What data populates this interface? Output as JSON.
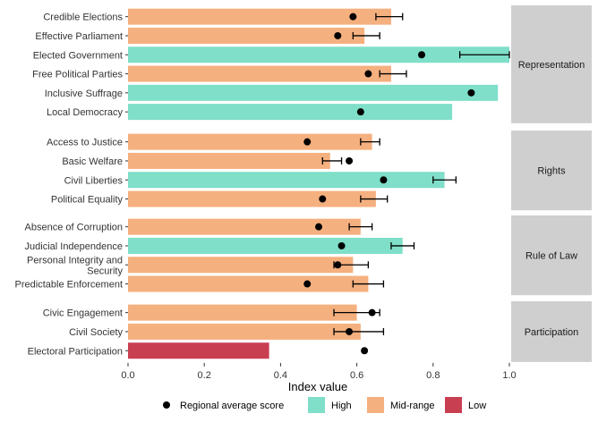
{
  "colors": {
    "High": "#7fdfc9",
    "Mid-range": "#f5b07f",
    "Low": "#c93f52",
    "point": "#000000",
    "strip": "#cfcfcf"
  },
  "chart_data": {
    "type": "bar",
    "orientation": "horizontal",
    "xlabel": "Index value",
    "xlim": [
      0,
      1
    ],
    "xticks": [
      0,
      0.2,
      0.4,
      0.6,
      0.8,
      1
    ],
    "xtick_labels": [
      "0.0",
      "0.2",
      "0.4",
      "0.6",
      "0.8",
      "1.0"
    ],
    "grid": false,
    "legend": {
      "position": "bottom",
      "point_label": "Regional average score",
      "bar_labels": [
        "High",
        "Mid-range",
        "Low"
      ]
    },
    "facets": [
      {
        "name": "Representation",
        "items": [
          {
            "label": "Credible Elections",
            "value": 0.69,
            "category": "Mid-range",
            "regional_avg": 0.59,
            "ci": [
              0.65,
              0.72
            ]
          },
          {
            "label": "Effective Parliament",
            "value": 0.62,
            "category": "Mid-range",
            "regional_avg": 0.55,
            "ci": [
              0.59,
              0.66
            ]
          },
          {
            "label": "Elected Government",
            "value": 1.0,
            "category": "High",
            "regional_avg": 0.77,
            "ci": [
              0.87,
              1.0
            ]
          },
          {
            "label": "Free Political Parties",
            "value": 0.69,
            "category": "Mid-range",
            "regional_avg": 0.63,
            "ci": [
              0.66,
              0.73
            ]
          },
          {
            "label": "Inclusive Suffrage",
            "value": 0.97,
            "category": "High",
            "regional_avg": 0.9,
            "ci": null
          },
          {
            "label": "Local Democracy",
            "value": 0.85,
            "category": "High",
            "regional_avg": 0.61,
            "ci": null
          }
        ]
      },
      {
        "name": "Rights",
        "items": [
          {
            "label": "Access to Justice",
            "value": 0.64,
            "category": "Mid-range",
            "regional_avg": 0.47,
            "ci": [
              0.61,
              0.66
            ]
          },
          {
            "label": "Basic Welfare",
            "value": 0.53,
            "category": "Mid-range",
            "regional_avg": 0.58,
            "ci": [
              0.51,
              0.56
            ]
          },
          {
            "label": "Civil Liberties",
            "value": 0.83,
            "category": "High",
            "regional_avg": 0.67,
            "ci": [
              0.8,
              0.86
            ]
          },
          {
            "label": "Political Equality",
            "value": 0.65,
            "category": "Mid-range",
            "regional_avg": 0.51,
            "ci": [
              0.61,
              0.68
            ]
          }
        ]
      },
      {
        "name": "Rule of Law",
        "items": [
          {
            "label": "Absence of Corruption",
            "value": 0.61,
            "category": "Mid-range",
            "regional_avg": 0.5,
            "ci": [
              0.58,
              0.64
            ]
          },
          {
            "label": "Judicial Independence",
            "value": 0.72,
            "category": "High",
            "regional_avg": 0.56,
            "ci": [
              0.69,
              0.75
            ]
          },
          {
            "label": "Personal Integrity and Security",
            "value": 0.59,
            "category": "Mid-range",
            "regional_avg": 0.55,
            "ci": [
              0.54,
              0.63
            ]
          },
          {
            "label": "Predictable Enforcement",
            "value": 0.63,
            "category": "Mid-range",
            "regional_avg": 0.47,
            "ci": [
              0.59,
              0.67
            ]
          }
        ]
      },
      {
        "name": "Participation",
        "items": [
          {
            "label": "Civic Engagement",
            "value": 0.6,
            "category": "Mid-range",
            "regional_avg": 0.64,
            "ci": [
              0.54,
              0.66
            ]
          },
          {
            "label": "Civil Society",
            "value": 0.61,
            "category": "Mid-range",
            "regional_avg": 0.58,
            "ci": [
              0.54,
              0.67
            ]
          },
          {
            "label": "Electoral Participation",
            "value": 0.37,
            "category": "Low",
            "regional_avg": 0.62,
            "ci": null
          }
        ]
      }
    ]
  }
}
